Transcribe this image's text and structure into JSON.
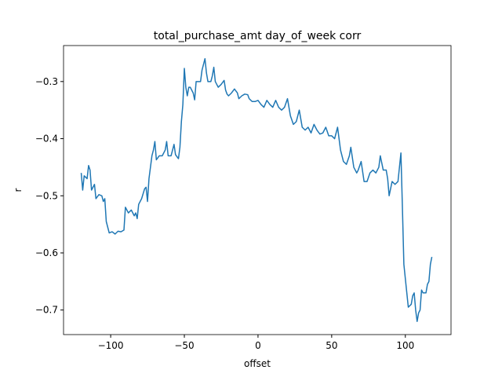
{
  "chart_data": {
    "type": "line",
    "title": "total_purchase_amt day_of_week corr",
    "x_label": "offset",
    "y_label": "r",
    "color": "#1f77b4",
    "x": [
      -120,
      -119,
      -118,
      -116,
      -115,
      -114,
      -113,
      -111,
      -110,
      -108,
      -106,
      -105,
      -104,
      -103,
      -101,
      -99,
      -97,
      -95,
      -93,
      -91,
      -90,
      -88,
      -86,
      -84,
      -83,
      -82,
      -81,
      -79,
      -77,
      -76,
      -75,
      -74,
      -72,
      -71,
      -70,
      -69,
      -67,
      -65,
      -63,
      -62,
      -61,
      -59,
      -57,
      -56,
      -54,
      -53,
      -52,
      -51,
      -50,
      -49,
      -48,
      -47,
      -46,
      -44,
      -43,
      -42,
      -40,
      -39,
      -38,
      -36,
      -35,
      -34,
      -32,
      -31,
      -30,
      -29,
      -27,
      -25,
      -23,
      -22,
      -21,
      -20,
      -18,
      -16,
      -14,
      -13,
      -11,
      -9,
      -7,
      -6,
      -4,
      -2,
      0,
      2,
      4,
      6,
      8,
      10,
      12,
      14,
      16,
      18,
      20,
      22,
      24,
      26,
      28,
      30,
      32,
      34,
      36,
      38,
      40,
      42,
      44,
      46,
      48,
      50,
      52,
      54,
      56,
      58,
      60,
      62,
      63,
      65,
      67,
      68,
      70,
      72,
      74,
      76,
      78,
      80,
      82,
      83,
      85,
      87,
      88,
      89,
      91,
      93,
      95,
      97,
      98,
      99,
      101,
      102,
      104,
      105,
      106,
      107,
      108,
      109,
      110,
      111,
      112,
      114,
      115,
      116,
      117,
      118
    ],
    "values": [
      -0.46,
      -0.49,
      -0.465,
      -0.47,
      -0.447,
      -0.455,
      -0.49,
      -0.48,
      -0.505,
      -0.498,
      -0.5,
      -0.51,
      -0.505,
      -0.545,
      -0.565,
      -0.563,
      -0.567,
      -0.562,
      -0.563,
      -0.56,
      -0.52,
      -0.53,
      -0.525,
      -0.535,
      -0.53,
      -0.54,
      -0.515,
      -0.505,
      -0.488,
      -0.485,
      -0.51,
      -0.47,
      -0.43,
      -0.42,
      -0.405,
      -0.437,
      -0.43,
      -0.43,
      -0.42,
      -0.405,
      -0.43,
      -0.43,
      -0.41,
      -0.428,
      -0.435,
      -0.415,
      -0.37,
      -0.34,
      -0.277,
      -0.31,
      -0.325,
      -0.31,
      -0.31,
      -0.32,
      -0.332,
      -0.3,
      -0.3,
      -0.3,
      -0.28,
      -0.26,
      -0.285,
      -0.3,
      -0.3,
      -0.29,
      -0.275,
      -0.3,
      -0.31,
      -0.305,
      -0.298,
      -0.315,
      -0.322,
      -0.325,
      -0.32,
      -0.313,
      -0.32,
      -0.33,
      -0.325,
      -0.322,
      -0.323,
      -0.33,
      -0.335,
      -0.335,
      -0.333,
      -0.34,
      -0.345,
      -0.333,
      -0.34,
      -0.345,
      -0.333,
      -0.345,
      -0.35,
      -0.345,
      -0.33,
      -0.36,
      -0.375,
      -0.37,
      -0.35,
      -0.38,
      -0.385,
      -0.38,
      -0.39,
      -0.375,
      -0.385,
      -0.392,
      -0.39,
      -0.38,
      -0.395,
      -0.395,
      -0.4,
      -0.38,
      -0.42,
      -0.44,
      -0.445,
      -0.43,
      -0.415,
      -0.45,
      -0.46,
      -0.455,
      -0.44,
      -0.475,
      -0.475,
      -0.46,
      -0.455,
      -0.46,
      -0.45,
      -0.43,
      -0.455,
      -0.455,
      -0.47,
      -0.5,
      -0.475,
      -0.48,
      -0.475,
      -0.425,
      -0.52,
      -0.62,
      -0.67,
      -0.695,
      -0.69,
      -0.675,
      -0.67,
      -0.7,
      -0.72,
      -0.705,
      -0.7,
      -0.665,
      -0.67,
      -0.67,
      -0.655,
      -0.65,
      -0.62,
      -0.607
    ],
    "xlim": [
      -132,
      131
    ],
    "ylim": [
      -0.743,
      -0.237
    ],
    "xticks": [
      {
        "value": -100,
        "label": "−100"
      },
      {
        "value": -50,
        "label": "−50"
      },
      0,
      50,
      100
    ],
    "yticks": [
      {
        "value": -0.7,
        "label": "−0.7"
      },
      {
        "value": -0.6,
        "label": "−0.6"
      },
      {
        "value": -0.5,
        "label": "−0.5"
      },
      {
        "value": -0.4,
        "label": "−0.4"
      },
      {
        "value": -0.3,
        "label": "−0.3"
      }
    ]
  }
}
